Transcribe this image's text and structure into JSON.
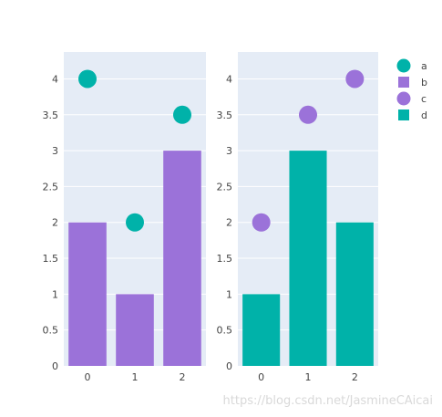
{
  "chart_data": [
    {
      "type": "bar",
      "categories": [
        "0",
        "1",
        "2"
      ],
      "y_ticks": [
        "0",
        "0.5",
        "1",
        "1.5",
        "2",
        "2.5",
        "3",
        "3.5",
        "4"
      ],
      "ylim": [
        0,
        4.375
      ],
      "series": [
        {
          "name": "a",
          "type": "scatter",
          "values": [
            4,
            2,
            3.5
          ],
          "color": "#00B2A9"
        },
        {
          "name": "b",
          "type": "bar",
          "values": [
            2,
            1,
            3
          ],
          "color": "#9B72D9"
        }
      ],
      "grid": true
    },
    {
      "type": "bar",
      "categories": [
        "0",
        "1",
        "2"
      ],
      "y_ticks": [
        "0",
        "0.5",
        "1",
        "1.5",
        "2",
        "2.5",
        "3",
        "3.5",
        "4"
      ],
      "ylim": [
        0,
        4.375
      ],
      "series": [
        {
          "name": "c",
          "type": "scatter",
          "values": [
            2,
            3.5,
            4
          ],
          "color": "#9B72D9"
        },
        {
          "name": "d",
          "type": "bar",
          "values": [
            1,
            3,
            2
          ],
          "color": "#00B2A9"
        }
      ],
      "grid": true
    }
  ],
  "legend": {
    "placement": "top-right",
    "items": [
      {
        "label": "a",
        "symbol": "circle",
        "color": "#00B2A9"
      },
      {
        "label": "b",
        "symbol": "square",
        "color": "#9B72D9"
      },
      {
        "label": "c",
        "symbol": "circle",
        "color": "#9B72D9"
      },
      {
        "label": "d",
        "symbol": "square",
        "color": "#00B2A9"
      }
    ]
  },
  "plot_bg": "#E5ECF6",
  "watermark": "https://blog.csdn.net/JasmineCAicai"
}
